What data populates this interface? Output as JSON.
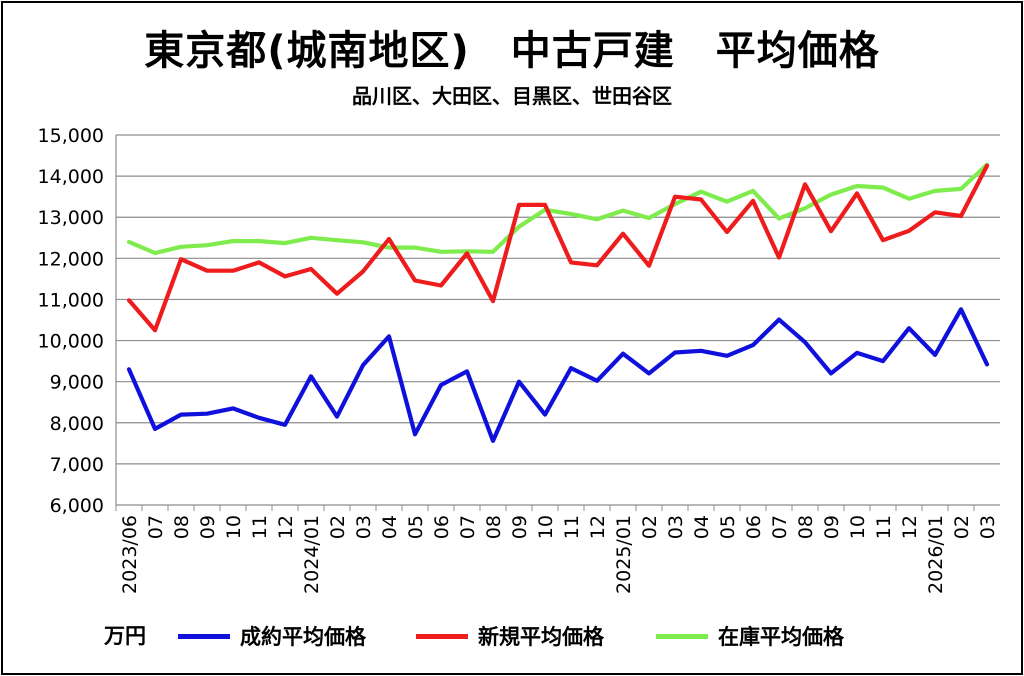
{
  "title": "東京都(城南地区)　中古戸建　平均価格",
  "subtitle": "品川区、大田区、目黒区、世田谷区",
  "unit_label": "万円",
  "chart_data": {
    "type": "line",
    "title": "東京都(城南地区)　中古戸建　平均価格",
    "subtitle": "品川区、大田区、目黒区、世田谷区",
    "ylabel": "万円",
    "ylim": [
      6000,
      15000
    ],
    "y_ticks": [
      6000,
      7000,
      8000,
      9000,
      10000,
      11000,
      12000,
      13000,
      14000,
      15000
    ],
    "y_tick_labels": [
      "6,000",
      "7,000",
      "8,000",
      "9,000",
      "10,000",
      "11,000",
      "12,000",
      "13,000",
      "14,000",
      "15,000"
    ],
    "grid": true,
    "legend_position": "bottom",
    "categories": [
      "2023/06",
      "07",
      "08",
      "09",
      "10",
      "11",
      "12",
      "2024/01",
      "02",
      "03",
      "04",
      "05",
      "06",
      "07",
      "08",
      "09",
      "10",
      "11",
      "12",
      "2025/01",
      "02",
      "03",
      "04",
      "05",
      "06",
      "07",
      "08",
      "09",
      "10",
      "11",
      "12",
      "2026/01",
      "02",
      "03"
    ],
    "series": [
      {
        "name": "成約平均価格",
        "color": "#1010dd",
        "values": [
          9300,
          7850,
          8200,
          8220,
          8350,
          8120,
          7950,
          9130,
          8150,
          9400,
          10100,
          7720,
          8920,
          9250,
          7560,
          9000,
          8200,
          9330,
          9020,
          9680,
          9200,
          9710,
          9750,
          9630,
          9890,
          10510,
          9960,
          9200,
          9700,
          9500,
          10300,
          9650,
          10760,
          9420
        ]
      },
      {
        "name": "新規平均価格",
        "color": "#ee1c1c",
        "values": [
          10980,
          10250,
          11980,
          11700,
          11700,
          11900,
          11560,
          11740,
          11140,
          11680,
          12470,
          11460,
          11340,
          12120,
          10960,
          13300,
          13300,
          11900,
          11830,
          12600,
          11820,
          13500,
          13430,
          12640,
          13400,
          12020,
          13800,
          12660,
          13580,
          12440,
          12670,
          13120,
          13030,
          14250
        ]
      },
      {
        "name": "在庫平均価格",
        "color": "#7fec4e",
        "values": [
          12400,
          12130,
          12280,
          12320,
          12420,
          12420,
          12370,
          12500,
          12440,
          12390,
          12260,
          12260,
          12160,
          12170,
          12160,
          12770,
          13180,
          13080,
          12950,
          13160,
          12980,
          13320,
          13620,
          13380,
          13640,
          12970,
          13220,
          13550,
          13760,
          13720,
          13450,
          13640,
          13690,
          14280
        ]
      }
    ]
  }
}
